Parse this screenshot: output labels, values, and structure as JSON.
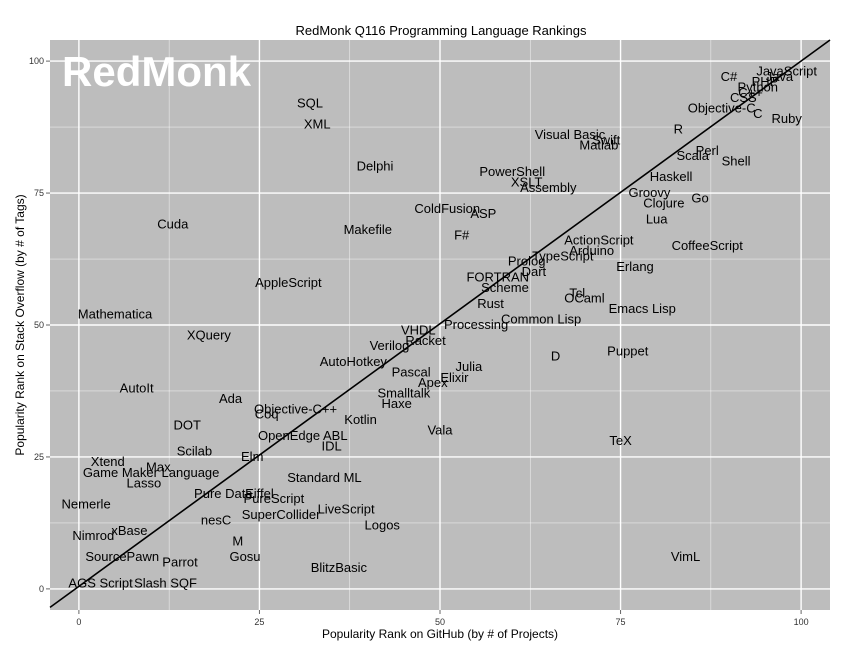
{
  "chart_data": {
    "type": "scatter",
    "title": "RedMonk Q116 Programming Language Rankings",
    "xlabel": "Popularity Rank on GitHub (by # of Projects)",
    "ylabel": "Popularity Rank on Stack Overflow (by # of Tags)",
    "watermark": "RedMonk",
    "xlim": [
      -4,
      104
    ],
    "ylim": [
      -4,
      104
    ],
    "x_ticks": [
      0,
      25,
      50,
      75,
      100
    ],
    "y_ticks": [
      0,
      25,
      50,
      75,
      100
    ],
    "grid": true,
    "background_color": "#bdbdbd",
    "grid_color": "#ffffff",
    "trend_line": {
      "from": [
        -4,
        -3.5
      ],
      "to": [
        104,
        104
      ]
    },
    "points": [
      {
        "label": "JavaScript",
        "x": 98,
        "y": 98
      },
      {
        "label": "Java",
        "x": 97,
        "y": 97
      },
      {
        "label": "PHP",
        "x": 95,
        "y": 96
      },
      {
        "label": "C#",
        "x": 90,
        "y": 97
      },
      {
        "label": "Python",
        "x": 94,
        "y": 95
      },
      {
        "label": "C++",
        "x": 93,
        "y": 94
      },
      {
        "label": "CSS",
        "x": 92,
        "y": 93
      },
      {
        "label": "Objective-C",
        "x": 89,
        "y": 91
      },
      {
        "label": "C",
        "x": 94,
        "y": 90
      },
      {
        "label": "Ruby",
        "x": 98,
        "y": 89
      },
      {
        "label": "R",
        "x": 83,
        "y": 87
      },
      {
        "label": "Visual Basic",
        "x": 68,
        "y": 86
      },
      {
        "label": "Swift",
        "x": 73,
        "y": 85
      },
      {
        "label": "Matlab",
        "x": 72,
        "y": 84
      },
      {
        "label": "Perl",
        "x": 87,
        "y": 83
      },
      {
        "label": "Scala",
        "x": 85,
        "y": 82
      },
      {
        "label": "Shell",
        "x": 91,
        "y": 81
      },
      {
        "label": "SQL",
        "x": 32,
        "y": 92
      },
      {
        "label": "XML",
        "x": 33,
        "y": 88
      },
      {
        "label": "Delphi",
        "x": 41,
        "y": 80
      },
      {
        "label": "PowerShell",
        "x": 60,
        "y": 79
      },
      {
        "label": "XSLT",
        "x": 62,
        "y": 77
      },
      {
        "label": "Assembly",
        "x": 65,
        "y": 76
      },
      {
        "label": "Haskell",
        "x": 82,
        "y": 78
      },
      {
        "label": "Groovy",
        "x": 79,
        "y": 75
      },
      {
        "label": "Go",
        "x": 86,
        "y": 74
      },
      {
        "label": "Clojure",
        "x": 81,
        "y": 73
      },
      {
        "label": "ColdFusion",
        "x": 51,
        "y": 72
      },
      {
        "label": "ASP",
        "x": 56,
        "y": 71
      },
      {
        "label": "Lua",
        "x": 80,
        "y": 70
      },
      {
        "label": "Cuda",
        "x": 13,
        "y": 69
      },
      {
        "label": "Makefile",
        "x": 40,
        "y": 68
      },
      {
        "label": "F#",
        "x": 53,
        "y": 67
      },
      {
        "label": "ActionScript",
        "x": 72,
        "y": 66
      },
      {
        "label": "CoffeeScript",
        "x": 87,
        "y": 65
      },
      {
        "label": "Arduino",
        "x": 71,
        "y": 64
      },
      {
        "label": "TypeScript",
        "x": 67,
        "y": 63
      },
      {
        "label": "Prolog",
        "x": 62,
        "y": 62
      },
      {
        "label": "Erlang",
        "x": 77,
        "y": 61
      },
      {
        "label": "Dart",
        "x": 63,
        "y": 60
      },
      {
        "label": "FORTRAN",
        "x": 58,
        "y": 59
      },
      {
        "label": "AppleScript",
        "x": 29,
        "y": 58
      },
      {
        "label": "Scheme",
        "x": 59,
        "y": 57
      },
      {
        "label": "Tcl",
        "x": 69,
        "y": 56
      },
      {
        "label": "OCaml",
        "x": 70,
        "y": 55
      },
      {
        "label": "Rust",
        "x": 57,
        "y": 54
      },
      {
        "label": "Emacs Lisp",
        "x": 78,
        "y": 53
      },
      {
        "label": "Mathematica",
        "x": 5,
        "y": 52
      },
      {
        "label": "Common Lisp",
        "x": 64,
        "y": 51
      },
      {
        "label": "Processing",
        "x": 55,
        "y": 50
      },
      {
        "label": "VHDL",
        "x": 47,
        "y": 49
      },
      {
        "label": "XQuery",
        "x": 18,
        "y": 48
      },
      {
        "label": "Racket",
        "x": 48,
        "y": 47
      },
      {
        "label": "Verilog",
        "x": 43,
        "y": 46
      },
      {
        "label": "Puppet",
        "x": 76,
        "y": 45
      },
      {
        "label": "D",
        "x": 66,
        "y": 44
      },
      {
        "label": "AutoHotkey",
        "x": 38,
        "y": 43
      },
      {
        "label": "Julia",
        "x": 54,
        "y": 42
      },
      {
        "label": "Pascal",
        "x": 46,
        "y": 41
      },
      {
        "label": "Elixir",
        "x": 52,
        "y": 40
      },
      {
        "label": "Apex",
        "x": 49,
        "y": 39
      },
      {
        "label": "AutoIt",
        "x": 8,
        "y": 38
      },
      {
        "label": "Smalltalk",
        "x": 45,
        "y": 37
      },
      {
        "label": "Ada",
        "x": 21,
        "y": 36
      },
      {
        "label": "Haxe",
        "x": 44,
        "y": 35
      },
      {
        "label": "Objective-C++",
        "x": 30,
        "y": 34
      },
      {
        "label": "Coq",
        "x": 26,
        "y": 33
      },
      {
        "label": "Kotlin",
        "x": 39,
        "y": 32
      },
      {
        "label": "DOT",
        "x": 15,
        "y": 31
      },
      {
        "label": "Vala",
        "x": 50,
        "y": 30
      },
      {
        "label": "OpenEdge ABL",
        "x": 31,
        "y": 29
      },
      {
        "label": "TeX",
        "x": 75,
        "y": 28
      },
      {
        "label": "IDL",
        "x": 35,
        "y": 27
      },
      {
        "label": "Scilab",
        "x": 16,
        "y": 26
      },
      {
        "label": "Elm",
        "x": 24,
        "y": 25
      },
      {
        "label": "Xtend",
        "x": 4,
        "y": 24
      },
      {
        "label": "Max",
        "x": 11,
        "y": 23
      },
      {
        "label": "Game Maker Language",
        "x": 10,
        "y": 22
      },
      {
        "label": "Standard ML",
        "x": 34,
        "y": 21
      },
      {
        "label": "Lasso",
        "x": 9,
        "y": 20
      },
      {
        "label": "Pure Data",
        "x": 20,
        "y": 18
      },
      {
        "label": "Eiffel",
        "x": 25,
        "y": 18
      },
      {
        "label": "PureScript",
        "x": 27,
        "y": 17
      },
      {
        "label": "Nemerle",
        "x": 1,
        "y": 16
      },
      {
        "label": "LiveScript",
        "x": 37,
        "y": 15
      },
      {
        "label": "SuperCollider",
        "x": 28,
        "y": 14
      },
      {
        "label": "nesC",
        "x": 19,
        "y": 13
      },
      {
        "label": "Logos",
        "x": 42,
        "y": 12
      },
      {
        "label": "xBase",
        "x": 7,
        "y": 11
      },
      {
        "label": "Nimrod",
        "x": 2,
        "y": 10
      },
      {
        "label": "M",
        "x": 22,
        "y": 9
      },
      {
        "label": "SourcePawn",
        "x": 6,
        "y": 6
      },
      {
        "label": "Gosu",
        "x": 23,
        "y": 6
      },
      {
        "label": "VimL",
        "x": 84,
        "y": 6
      },
      {
        "label": "Parrot",
        "x": 14,
        "y": 5
      },
      {
        "label": "BlitzBasic",
        "x": 36,
        "y": 4
      },
      {
        "label": "AGS Script",
        "x": 3,
        "y": 1
      },
      {
        "label": "Slash SQF",
        "x": 12,
        "y": 1
      }
    ]
  }
}
